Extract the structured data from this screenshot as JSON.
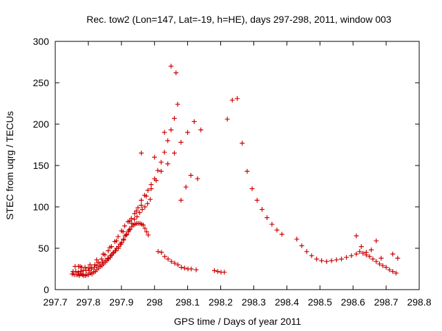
{
  "chart_data": {
    "type": "scatter",
    "title": "Rec. tow2 (Lon=147, Lat=-19, h=HE), days 297-298, 2011, window 003",
    "xlabel": "GPS time / Days of year 2011",
    "ylabel": "STEC from uqrg / TECUs",
    "xlim": [
      297.7,
      298.8
    ],
    "ylim": [
      0,
      300
    ],
    "xticks": [
      "297.7",
      "297.8",
      "297.9",
      "298",
      "298.1",
      "298.2",
      "298.3",
      "298.4",
      "298.5",
      "298.6",
      "298.7",
      "298.8"
    ],
    "yticks": [
      "0",
      "50",
      "100",
      "150",
      "200",
      "250",
      "300"
    ],
    "grid": false,
    "legend": "none",
    "marker": "plus",
    "marker_color": "#cc0000",
    "series": [
      {
        "x": [
          297.751,
          297.757,
          297.763,
          297.768,
          297.773,
          297.778,
          297.782,
          297.786,
          297.791,
          297.796,
          297.801,
          297.806,
          297.811,
          297.816,
          297.821,
          297.826,
          297.831,
          297.836,
          297.841,
          297.846,
          297.851,
          297.856,
          297.861,
          297.866,
          297.871,
          297.876,
          297.881,
          297.886,
          297.891,
          297.896,
          297.901,
          297.906,
          297.911,
          297.916,
          297.921,
          297.926,
          297.931,
          297.936,
          297.941,
          297.946,
          297.951,
          297.956,
          297.961,
          297.966,
          297.971,
          297.976,
          297.981,
          298.011,
          298.021,
          298.031,
          298.041,
          298.051,
          298.061,
          298.071,
          298.081,
          298.091,
          298.101,
          298.111,
          298.126,
          298.181,
          298.191,
          298.201,
          298.211
        ],
        "y": [
          19,
          18,
          18,
          18,
          17,
          19,
          18,
          17,
          17,
          18,
          18,
          20,
          19,
          21,
          22,
          24,
          26,
          28,
          29,
          31,
          33,
          35,
          37,
          39,
          42,
          45,
          47,
          50,
          52,
          55,
          57,
          61,
          65,
          67,
          70,
          73,
          76,
          78,
          79,
          80,
          80,
          80,
          79,
          78,
          74,
          70,
          66,
          46,
          45,
          40,
          37,
          34,
          32,
          30,
          27,
          26,
          25,
          25,
          24,
          23,
          22,
          21,
          21
        ]
      },
      {
        "x": [
          297.754,
          297.762,
          297.77,
          297.777,
          297.785,
          297.793,
          297.802,
          297.81,
          297.818,
          297.826,
          297.835,
          297.843,
          297.851,
          297.859,
          297.867,
          297.875,
          297.883,
          297.891,
          297.899,
          297.907,
          297.915,
          297.923,
          297.931,
          297.939,
          297.947,
          297.955,
          297.963,
          297.971,
          297.979,
          297.987
        ],
        "y": [
          22,
          22,
          21,
          22,
          23,
          23,
          23,
          25,
          27,
          29,
          31,
          33,
          35,
          38,
          41,
          44,
          47,
          50,
          55,
          60,
          66,
          72,
          80,
          85,
          88,
          93,
          97,
          100,
          104,
          109
        ]
      },
      {
        "x": [
          297.76,
          297.77,
          297.78,
          297.79,
          297.8,
          297.81,
          297.82,
          297.83,
          297.84,
          297.85,
          297.86,
          297.87,
          297.88,
          297.89,
          297.9,
          297.91,
          297.92,
          297.93,
          297.94,
          297.95,
          297.96,
          297.97,
          297.98,
          297.99,
          298.0,
          298.01,
          298.02,
          298.03,
          298.04,
          298.05,
          298.06,
          298.07
        ],
        "y": [
          28,
          28,
          27,
          27,
          26,
          27,
          30,
          33,
          37,
          42,
          47,
          52,
          58,
          64,
          71,
          77,
          82,
          86,
          92,
          99,
          108,
          114,
          120,
          127,
          134,
          144,
          154,
          166,
          180,
          193,
          207,
          224
        ]
      },
      {
        "x": [
          297.775,
          297.805,
          297.825,
          297.845,
          297.865,
          297.885,
          297.905,
          297.925,
          297.945,
          297.96,
          297.975,
          297.99,
          298.005,
          298.02,
          298.04,
          298.06,
          298.08,
          298.1,
          298.12,
          298.14
        ],
        "y": [
          28,
          30,
          36,
          43,
          51,
          59,
          70,
          83,
          95,
          102,
          113,
          122,
          132,
          143,
          152,
          165,
          178,
          190,
          203,
          193
        ]
      },
      {
        "x": [
          297.96,
          298.0,
          298.03,
          298.05,
          298.065,
          298.08,
          298.095,
          298.11,
          298.13
        ],
        "y": [
          165,
          160,
          190,
          270,
          262,
          108,
          124,
          138,
          134
        ]
      },
      {
        "x": [
          298.22,
          298.235,
          298.25,
          298.265,
          298.28,
          298.295,
          298.31,
          298.325,
          298.34,
          298.355,
          298.37,
          298.385,
          298.43,
          298.445,
          298.46,
          298.475,
          298.49,
          298.505,
          298.52,
          298.535,
          298.55,
          298.565,
          298.58,
          298.595,
          298.61,
          298.62,
          298.63,
          298.64,
          298.65,
          298.66,
          298.67,
          298.68,
          298.69,
          298.7,
          298.71,
          298.72,
          298.73
        ],
        "y": [
          206,
          229,
          231,
          177,
          143,
          122,
          108,
          97,
          87,
          79,
          72,
          67,
          61,
          53,
          46,
          41,
          37,
          35,
          34,
          35,
          36,
          37,
          39,
          41,
          43,
          46,
          44,
          42,
          40,
          37,
          34,
          31,
          29,
          27,
          24,
          22,
          20
        ]
      },
      {
        "x": [
          298.61,
          298.625,
          298.64,
          298.655,
          298.67,
          298.685,
          298.72,
          298.735
        ],
        "y": [
          65,
          52,
          45,
          48,
          59,
          38,
          43,
          38
        ]
      }
    ]
  }
}
